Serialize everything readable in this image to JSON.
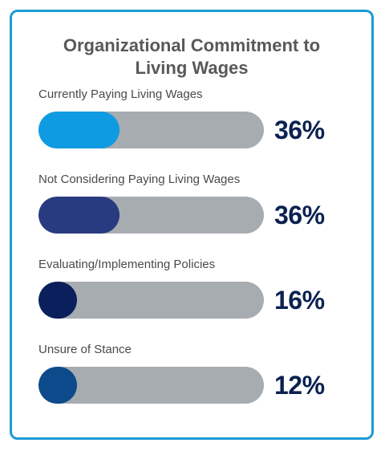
{
  "chart_data": {
    "type": "bar",
    "title": "Organizational Commitment to Living Wages",
    "categories": [
      "Currently Paying Living Wages",
      "Not Considering Paying Living Wages",
      "Evaluating/Implementing Policies",
      "Unsure of Stance"
    ],
    "values": [
      36,
      36,
      16,
      12
    ],
    "value_labels": [
      "36%",
      "36%",
      "16%",
      "12%"
    ],
    "xlim": [
      0,
      100
    ],
    "colors": {
      "bars": [
        "#0f9be2",
        "#283b80",
        "#0a1f5c",
        "#0d4a8c"
      ],
      "track": "#a7acb1",
      "value_text": "#0b2150",
      "border": "#1c9ad6"
    }
  }
}
